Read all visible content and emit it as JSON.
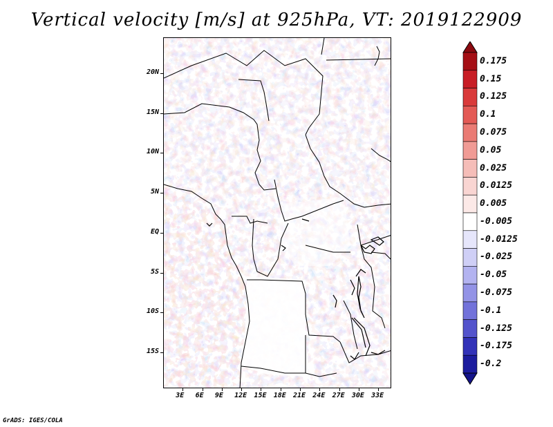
{
  "title": "Vertical velocity [m/s] at 925hPa, VT: 2019122909",
  "credit": "GrADS: IGES/COLA",
  "map": {
    "lat_range": [
      -19.5,
      24.5
    ],
    "lon_range": [
      0,
      35
    ],
    "lat_ticks": [
      {
        "value": 20,
        "label": "20N"
      },
      {
        "value": 15,
        "label": "15N"
      },
      {
        "value": 10,
        "label": "10N"
      },
      {
        "value": 5,
        "label": "5N"
      },
      {
        "value": 0,
        "label": "EQ"
      },
      {
        "value": -5,
        "label": "5S"
      },
      {
        "value": -10,
        "label": "10S"
      },
      {
        "value": -15,
        "label": "15S"
      }
    ],
    "lon_ticks": [
      {
        "value": 3,
        "label": "3E"
      },
      {
        "value": 6,
        "label": "6E"
      },
      {
        "value": 9,
        "label": "9E"
      },
      {
        "value": 12,
        "label": "12E"
      },
      {
        "value": 15,
        "label": "15E"
      },
      {
        "value": 18,
        "label": "18E"
      },
      {
        "value": 21,
        "label": "21E"
      },
      {
        "value": 24,
        "label": "24E"
      },
      {
        "value": 27,
        "label": "27E"
      },
      {
        "value": 30,
        "label": "30E"
      },
      {
        "value": 33,
        "label": "33E"
      }
    ]
  },
  "colorbar": {
    "levels": [
      {
        "label": "0.175",
        "color": "#a50f15"
      },
      {
        "label": "0.15",
        "color": "#c81d25"
      },
      {
        "label": "0.125",
        "color": "#d93a3a"
      },
      {
        "label": "0.1",
        "color": "#e35a55"
      },
      {
        "label": "0.075",
        "color": "#ea7b74"
      },
      {
        "label": "0.05",
        "color": "#f09b95"
      },
      {
        "label": "0.025",
        "color": "#f5bdb8"
      },
      {
        "label": "0.0125",
        "color": "#f9d5d2"
      },
      {
        "label": "0.005",
        "color": "#fce9e7"
      },
      {
        "label": "-0.005",
        "color": "#ffffff"
      },
      {
        "label": "-0.0125",
        "color": "#e6e6fb"
      },
      {
        "label": "-0.025",
        "color": "#cfcff6"
      },
      {
        "label": "-0.05",
        "color": "#b3b3f0"
      },
      {
        "label": "-0.075",
        "color": "#9393e6"
      },
      {
        "label": "-0.1",
        "color": "#7272da"
      },
      {
        "label": "-0.125",
        "color": "#5353cc"
      },
      {
        "label": "-0.175",
        "color": "#3232b8"
      },
      {
        "label": "-0.2",
        "color": "#1c1c9e"
      }
    ],
    "top_arrow_color": "#8b0a10",
    "bottom_arrow_color": "#14148a"
  }
}
